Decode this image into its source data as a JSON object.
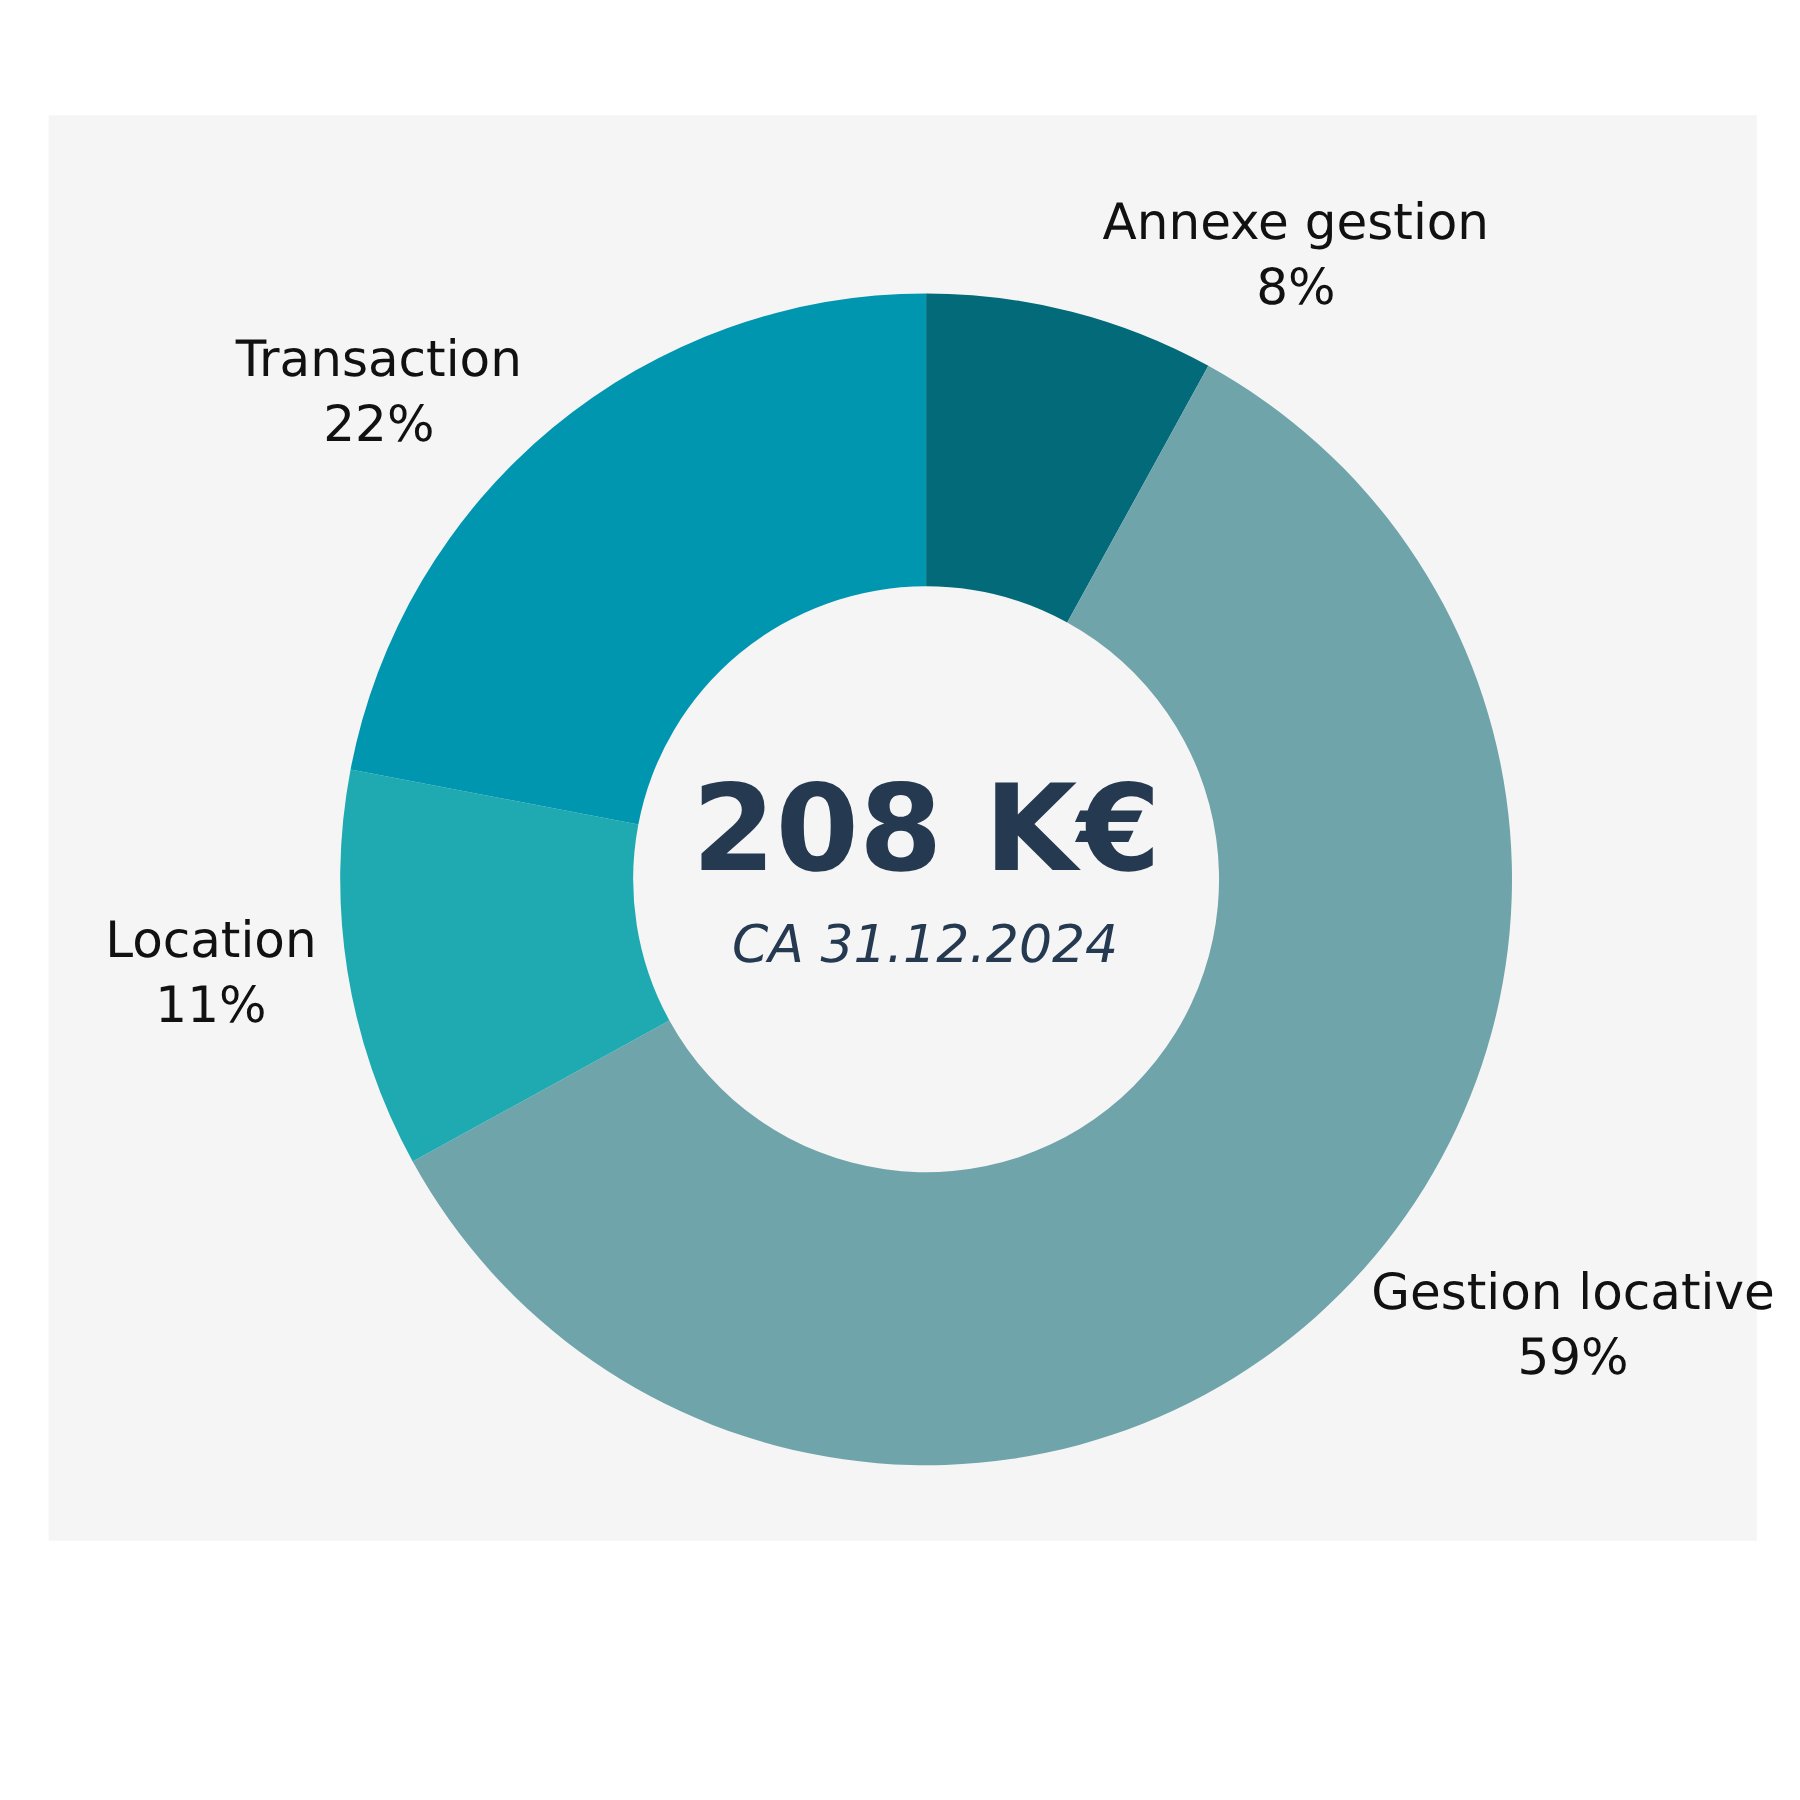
{
  "chart_data": {
    "type": "donut",
    "categories": [
      "Annexe gestion",
      "Gestion locative",
      "Location",
      "Transaction"
    ],
    "values": [
      8,
      59,
      11,
      22
    ],
    "value_labels": [
      "8%",
      "59%",
      "11%",
      "22%"
    ],
    "colors": [
      "#036a7a",
      "#6fa4ab",
      "#1eaab0",
      "#0096b0"
    ],
    "annotations": [
      "208 K€",
      "CA 31.12.2024"
    ]
  }
}
